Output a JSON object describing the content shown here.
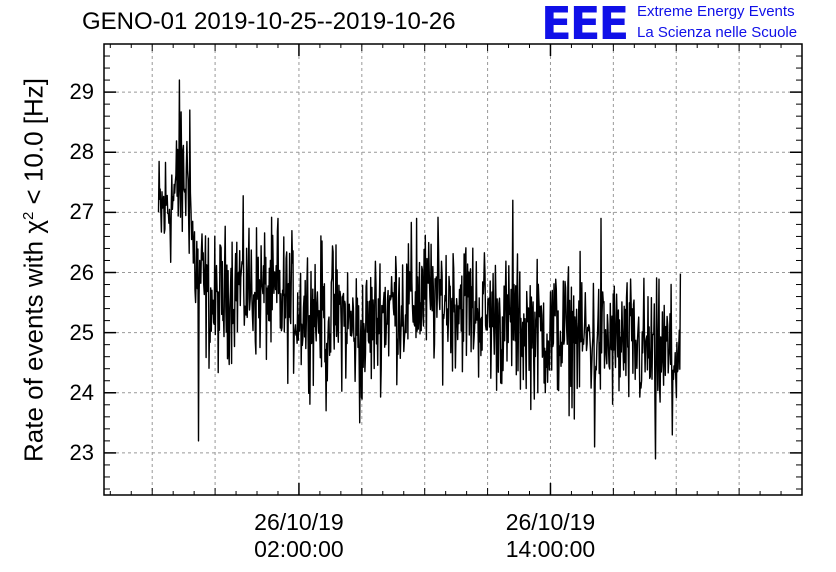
{
  "title": "GENO-01 2019-10-25--2019-10-26",
  "logo": {
    "mark": "EEE",
    "line1": "Extreme Energy Events",
    "line2": "La Scienza nelle Scuole",
    "color": "#1010e8"
  },
  "chart_data": {
    "type": "line",
    "ylabel_prefix": "Rate of events with ",
    "ylabel_chi": "χ",
    "ylabel_sup": "2",
    "ylabel_suffix": " < 10.0 [Hz]",
    "ylim": [
      22.3,
      29.8
    ],
    "yticks": [
      23,
      24,
      25,
      26,
      27,
      28,
      29
    ],
    "xlim_hours": [
      -7.3,
      26.0
    ],
    "x_major_ticks": [
      {
        "hours": 2,
        "date": "26/10/19",
        "time": "02:00:00"
      },
      {
        "hours": 14,
        "date": "26/10/19",
        "time": "14:00:00"
      }
    ],
    "x_minor_tick_hours": [
      -5,
      -2,
      5,
      8,
      11,
      17,
      20,
      23
    ],
    "grid": true,
    "series": [
      {
        "color": "#000000",
        "x_start_hours": -4.7,
        "x_end_hours": 20.2,
        "trend": [
          {
            "hours": -4.7,
            "value": 26.9
          },
          {
            "hours": -3.3,
            "value": 27.6
          },
          {
            "hours": -3.0,
            "value": 26.2
          },
          {
            "hours": -2.4,
            "value": 25.6
          },
          {
            "hours": -2.0,
            "value": 25.4
          },
          {
            "hours": -1.0,
            "value": 25.85
          },
          {
            "hours": 0.0,
            "value": 25.7
          },
          {
            "hours": 2.0,
            "value": 25.4
          },
          {
            "hours": 4.0,
            "value": 25.3
          },
          {
            "hours": 5.0,
            "value": 24.9
          },
          {
            "hours": 6.0,
            "value": 25.4
          },
          {
            "hours": 8.0,
            "value": 25.6
          },
          {
            "hours": 10.0,
            "value": 25.5
          },
          {
            "hours": 12.0,
            "value": 25.1
          },
          {
            "hours": 14.0,
            "value": 25.0
          },
          {
            "hours": 16.0,
            "value": 24.9
          },
          {
            "hours": 18.0,
            "value": 24.75
          },
          {
            "hours": 20.2,
            "value": 24.6
          }
        ],
        "noise_amplitude": 0.55,
        "dips": [
          {
            "hours": -2.8,
            "value": 23.2
          },
          {
            "hours": 3.3,
            "value": 23.7
          },
          {
            "hours": 4.9,
            "value": 23.5
          },
          {
            "hours": 16.1,
            "value": 23.1
          },
          {
            "hours": 19.0,
            "value": 22.9
          },
          {
            "hours": 19.8,
            "value": 23.3
          }
        ],
        "peaks": [
          {
            "hours": -3.7,
            "value": 29.2
          },
          {
            "hours": -3.2,
            "value": 28.7
          },
          {
            "hours": 1.0,
            "value": 26.9
          },
          {
            "hours": 7.6,
            "value": 26.9
          },
          {
            "hours": 12.2,
            "value": 27.2
          },
          {
            "hours": 16.4,
            "value": 26.9
          }
        ]
      }
    ]
  }
}
